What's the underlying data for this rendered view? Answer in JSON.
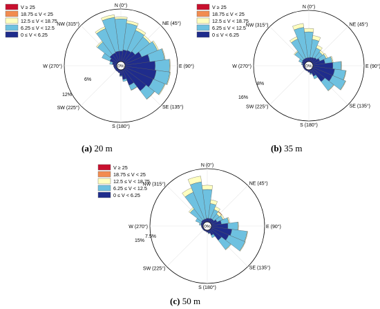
{
  "legend": {
    "bins": [
      {
        "label": "V ≥ 25",
        "color": "#c8102e"
      },
      {
        "label": "18.75 ≤ V < 25",
        "color": "#f28c50"
      },
      {
        "label": "12.5 ≤ V < 18.75",
        "color": "#ffffc0"
      },
      {
        "label": "6.25 ≤ V < 12.5",
        "color": "#6ec1e0"
      },
      {
        "label": "0 ≤ V < 6.25",
        "color": "#1f2c8c"
      }
    ]
  },
  "directions": [
    "N (0°)",
    "NE (45°)",
    "E (90°)",
    "SE (135°)",
    "S (180°)",
    "SW (225°)",
    "W (270°)",
    "NW (315°)"
  ],
  "calm_label": "0%",
  "chart_data": [
    {
      "type": "polar-bar",
      "caption_letter": "(a)",
      "caption_text": " 20 m",
      "ring_labels": [
        "6%",
        "12%"
      ],
      "ring_values": [
        6,
        12
      ],
      "rmax": 16,
      "sector_width_deg": 15,
      "sectors": [
        {
          "dir": 0,
          "values": [
            3.2,
            9.8,
            0.6
          ]
        },
        {
          "dir": 15,
          "values": [
            3.6,
            8.2,
            0.8
          ]
        },
        {
          "dir": 30,
          "values": [
            3.8,
            6.6,
            0.8
          ]
        },
        {
          "dir": 45,
          "values": [
            4.2,
            5.6,
            0.6
          ]
        },
        {
          "dir": 60,
          "values": [
            5.6,
            5.2,
            0.4
          ]
        },
        {
          "dir": 75,
          "values": [
            7.6,
            4.6,
            0.2
          ]
        },
        {
          "dir": 90,
          "values": [
            9.2,
            4.4,
            0.2
          ]
        },
        {
          "dir": 105,
          "values": [
            9.6,
            4.2,
            0.2
          ]
        },
        {
          "dir": 120,
          "values": [
            9.4,
            3.8,
            0.2
          ]
        },
        {
          "dir": 135,
          "values": [
            8.4,
            3.2,
            0.1
          ]
        },
        {
          "dir": 150,
          "values": [
            5.2,
            1.6,
            0.1
          ]
        },
        {
          "dir": 165,
          "values": [
            3.0,
            0.6
          ]
        },
        {
          "dir": 180,
          "values": [
            1.8,
            0.2
          ]
        },
        {
          "dir": 195,
          "values": [
            1.0
          ]
        },
        {
          "dir": 210,
          "values": [
            0.8
          ]
        },
        {
          "dir": 225,
          "values": [
            0.8
          ]
        },
        {
          "dir": 240,
          "values": [
            0.8
          ]
        },
        {
          "dir": 255,
          "values": [
            0.9
          ]
        },
        {
          "dir": 270,
          "values": [
            1.0
          ]
        },
        {
          "dir": 285,
          "values": [
            1.4,
            0.8
          ]
        },
        {
          "dir": 300,
          "values": [
            2.4,
            2.6
          ]
        },
        {
          "dir": 315,
          "values": [
            3.0,
            4.8,
            0.4
          ]
        },
        {
          "dir": 330,
          "values": [
            3.0,
            8.0,
            0.6
          ]
        },
        {
          "dir": 345,
          "values": [
            3.2,
            10.4,
            0.8
          ]
        }
      ]
    },
    {
      "type": "polar-bar",
      "caption_letter": "(b)",
      "caption_text": " 35 m",
      "ring_labels": [
        "8%",
        "16%"
      ],
      "ring_values": [
        8,
        16
      ],
      "rmax": 21,
      "sector_width_deg": 15,
      "sectors": [
        {
          "dir": 0,
          "values": [
            1.6,
            10.6,
            1.4
          ]
        },
        {
          "dir": 15,
          "values": [
            1.8,
            7.4,
            1.6
          ]
        },
        {
          "dir": 30,
          "values": [
            2.0,
            4.2,
            1.2
          ]
        },
        {
          "dir": 45,
          "values": [
            2.4,
            3.0,
            0.8
          ]
        },
        {
          "dir": 60,
          "values": [
            3.2,
            2.8,
            0.6
          ]
        },
        {
          "dir": 75,
          "values": [
            5.0,
            3.0,
            0.4
          ]
        },
        {
          "dir": 90,
          "values": [
            8.2,
            3.4,
            0.2
          ]
        },
        {
          "dir": 105,
          "values": [
            9.0,
            4.6,
            0.2
          ]
        },
        {
          "dir": 120,
          "values": [
            8.8,
            5.8,
            0.2
          ]
        },
        {
          "dir": 135,
          "values": [
            6.6,
            4.6,
            0.2
          ]
        },
        {
          "dir": 150,
          "values": [
            3.0,
            1.2
          ]
        },
        {
          "dir": 165,
          "values": [
            1.6,
            0.4
          ]
        },
        {
          "dir": 180,
          "values": [
            1.0
          ]
        },
        {
          "dir": 195,
          "values": [
            0.6
          ]
        },
        {
          "dir": 210,
          "values": [
            0.6
          ]
        },
        {
          "dir": 225,
          "values": [
            0.6
          ]
        },
        {
          "dir": 240,
          "values": [
            0.6
          ]
        },
        {
          "dir": 255,
          "values": [
            0.7
          ]
        },
        {
          "dir": 270,
          "values": [
            0.8
          ]
        },
        {
          "dir": 285,
          "values": [
            1.0,
            0.4
          ]
        },
        {
          "dir": 300,
          "values": [
            1.4,
            1.4
          ]
        },
        {
          "dir": 315,
          "values": [
            1.6,
            4.0,
            0.4
          ]
        },
        {
          "dir": 330,
          "values": [
            1.6,
            8.6,
            1.0
          ]
        },
        {
          "dir": 345,
          "values": [
            1.6,
            12.6,
            1.6
          ]
        }
      ]
    },
    {
      "type": "polar-bar",
      "caption_letter": "(c)",
      "caption_text": " 50 m",
      "ring_labels": [
        "7.5%",
        "15%"
      ],
      "ring_values": [
        7.5,
        15
      ],
      "rmax": 20,
      "sector_width_deg": 15,
      "sectors": [
        {
          "dir": 0,
          "values": [
            1.4,
            10.8,
            1.6
          ]
        },
        {
          "dir": 15,
          "values": [
            1.4,
            5.6,
            1.4
          ]
        },
        {
          "dir": 30,
          "values": [
            1.6,
            3.6,
            1.2
          ]
        },
        {
          "dir": 45,
          "values": [
            1.6,
            2.6,
            1.0,
            0.2
          ]
        },
        {
          "dir": 60,
          "values": [
            2.4,
            2.4,
            0.6
          ]
        },
        {
          "dir": 75,
          "values": [
            3.8,
            2.8,
            0.4
          ]
        },
        {
          "dir": 90,
          "values": [
            6.2,
            3.8,
            0.2
          ]
        },
        {
          "dir": 105,
          "values": [
            7.8,
            5.8,
            0.2
          ]
        },
        {
          "dir": 120,
          "values": [
            7.2,
            6.6,
            0.2
          ]
        },
        {
          "dir": 135,
          "values": [
            5.2,
            4.4,
            0.2
          ]
        },
        {
          "dir": 150,
          "values": [
            2.2,
            1.0
          ]
        },
        {
          "dir": 165,
          "values": [
            1.2,
            0.2
          ]
        },
        {
          "dir": 180,
          "values": [
            0.8
          ]
        },
        {
          "dir": 195,
          "values": [
            0.5
          ]
        },
        {
          "dir": 210,
          "values": [
            0.5
          ]
        },
        {
          "dir": 225,
          "values": [
            0.5
          ]
        },
        {
          "dir": 240,
          "values": [
            0.5
          ]
        },
        {
          "dir": 255,
          "values": [
            0.6
          ]
        },
        {
          "dir": 270,
          "values": [
            0.7
          ]
        },
        {
          "dir": 285,
          "values": [
            0.9,
            0.6
          ]
        },
        {
          "dir": 300,
          "values": [
            1.0,
            2.2
          ]
        },
        {
          "dir": 315,
          "values": [
            1.2,
            5.4,
            0.6
          ]
        },
        {
          "dir": 330,
          "values": [
            1.2,
            11.0,
            1.8
          ]
        },
        {
          "dir": 345,
          "values": [
            1.2,
            14.0,
            2.2
          ]
        }
      ]
    }
  ]
}
